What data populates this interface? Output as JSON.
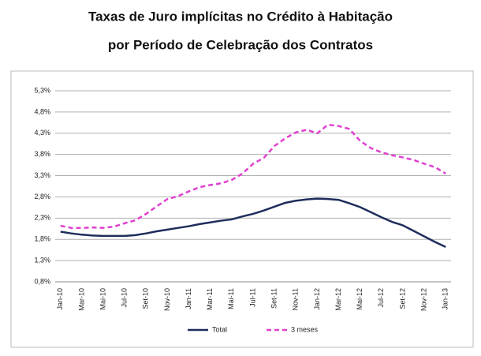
{
  "chart_data": {
    "type": "line",
    "title": "Taxas de Juro implícitas no Crédito à Habitação",
    "subtitle": "por Período de Celebração dos Contratos",
    "categories": [
      "Jan-10",
      null,
      "Mar-10",
      null,
      "Mai-10",
      null,
      "Jul-10",
      null,
      "Set-10",
      null,
      "Nov-10",
      null,
      "Jan-11",
      null,
      "Mar-11",
      null,
      "Mai-11",
      null,
      "Jul-11",
      null,
      "Set-11",
      null,
      "Nov-11",
      null,
      "Jan-12",
      null,
      "Mar-12",
      null,
      "Mai-12",
      null,
      "Jul-12",
      null,
      "Set-12",
      null,
      "Nov-12",
      null,
      "Jan-13"
    ],
    "series": [
      {
        "name": "Total",
        "color": "#1f2d5c",
        "dashed": false,
        "values": [
          1.98,
          1.94,
          1.91,
          1.89,
          1.88,
          1.88,
          1.88,
          1.9,
          1.94,
          1.99,
          2.03,
          2.07,
          2.11,
          2.16,
          2.2,
          2.24,
          2.27,
          2.34,
          2.4,
          2.48,
          2.57,
          2.66,
          2.71,
          2.74,
          2.76,
          2.75,
          2.73,
          2.65,
          2.56,
          2.44,
          2.32,
          2.21,
          2.13,
          2.0,
          1.87,
          1.74,
          1.62
        ]
      },
      {
        "name": "3 meses",
        "color": "#e040d0",
        "dashed": true,
        "values": [
          2.12,
          2.07,
          2.07,
          2.08,
          2.07,
          2.1,
          2.18,
          2.25,
          2.4,
          2.58,
          2.75,
          2.82,
          2.93,
          3.03,
          3.08,
          3.12,
          3.2,
          3.35,
          3.58,
          3.72,
          4.0,
          4.18,
          4.32,
          4.38,
          4.3,
          4.5,
          4.47,
          4.4,
          4.12,
          3.95,
          3.85,
          3.78,
          3.73,
          3.67,
          3.58,
          3.5,
          3.35
        ]
      }
    ],
    "ylim": [
      0.8,
      5.3
    ],
    "yticks": [
      {
        "value": 0.8,
        "label": "0,8%"
      },
      {
        "value": 1.3,
        "label": "1,3%"
      },
      {
        "value": 1.8,
        "label": "1,8%"
      },
      {
        "value": 2.3,
        "label": "2,3%"
      },
      {
        "value": 2.8,
        "label": "2,8%"
      },
      {
        "value": 3.3,
        "label": "3,3%"
      },
      {
        "value": 3.8,
        "label": "3,8%"
      },
      {
        "value": 4.3,
        "label": "4,3%"
      },
      {
        "value": 4.8,
        "label": "4,8%"
      },
      {
        "value": 5.3,
        "label": "5,3%"
      }
    ],
    "grid": true,
    "legend": "bottom"
  }
}
